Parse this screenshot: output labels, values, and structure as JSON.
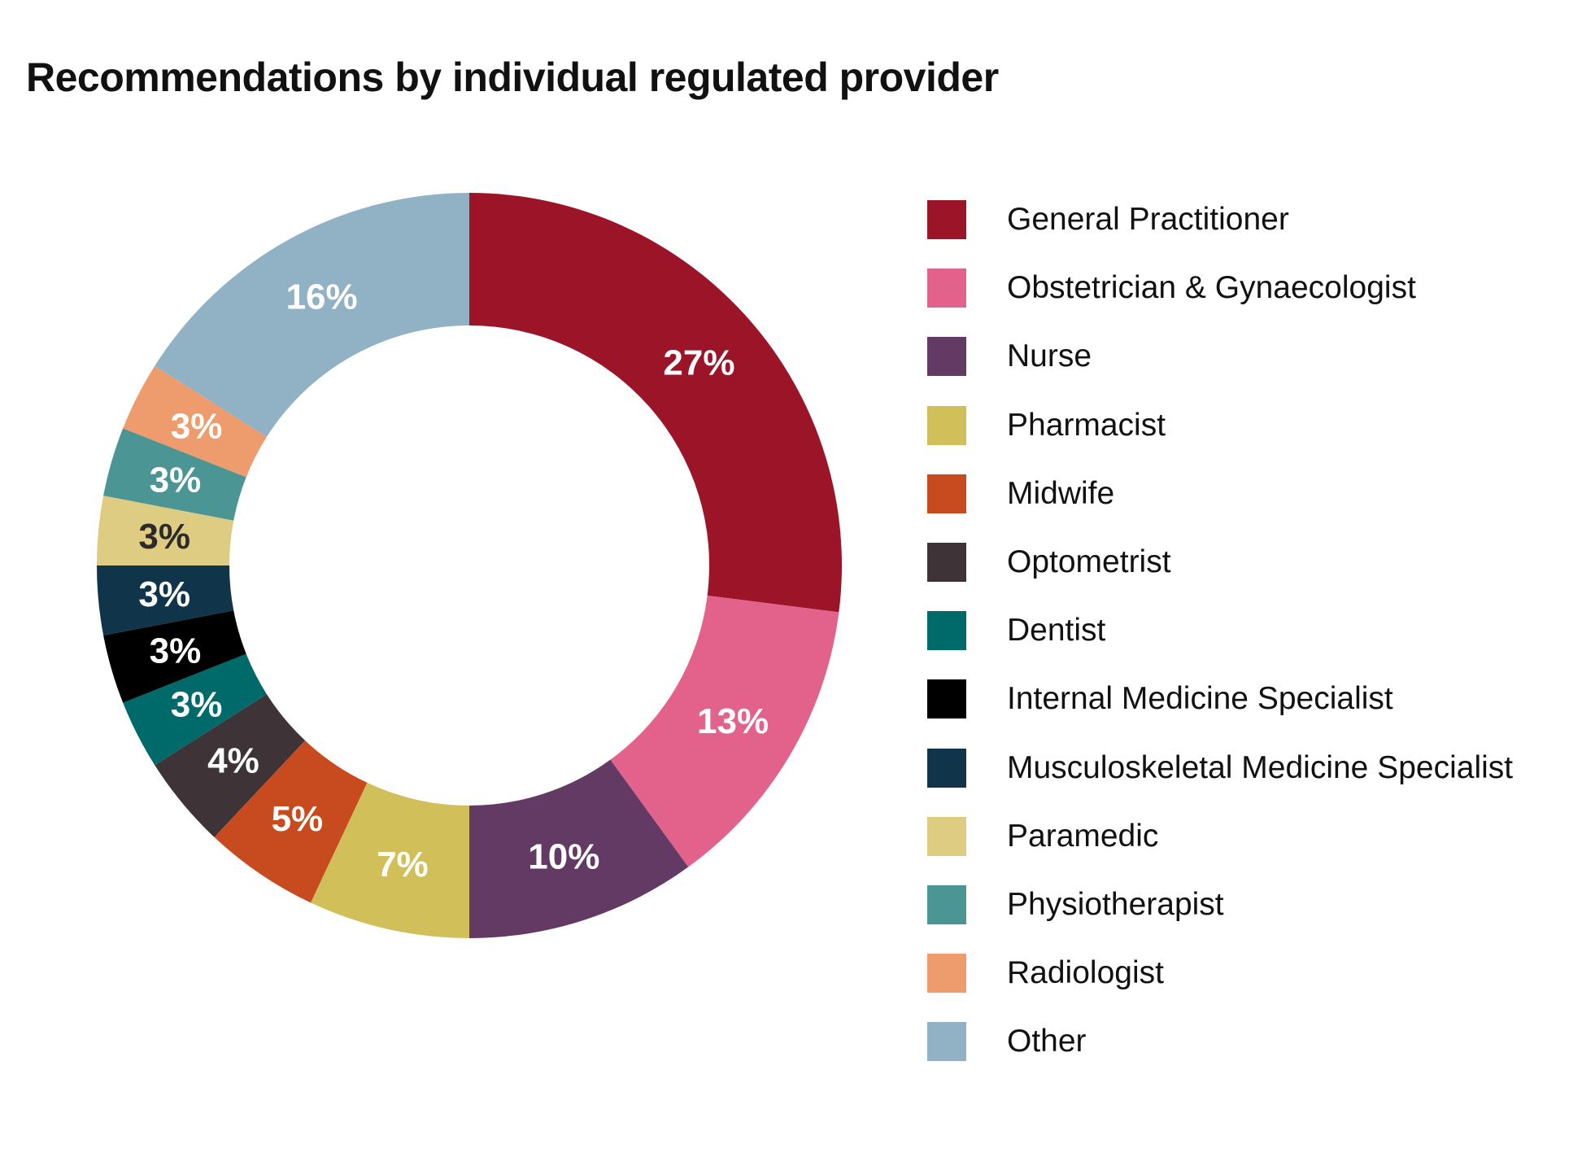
{
  "chart_data": {
    "type": "pie",
    "title": "Recommendations by individual regulated provider",
    "hole": true,
    "legend_position": "right",
    "categories": [
      "General Practitioner",
      "Obstetrician & Gynaecologist",
      "Nurse",
      "Pharmacist",
      "Midwife",
      "Optometrist",
      "Dentist",
      "Internal Medicine Specialist",
      "Musculoskeletal Medicine Specialist",
      "Paramedic",
      "Physiotherapist",
      "Radiologist",
      "Other"
    ],
    "values": [
      27,
      13,
      10,
      7,
      5,
      4,
      3,
      3,
      3,
      3,
      3,
      3,
      16
    ],
    "data_labels": [
      "27%",
      "13%",
      "10%",
      "7%",
      "5%",
      "4%",
      "3%",
      "3%",
      "3%",
      "3%",
      "3%",
      "3%",
      "16%"
    ],
    "colors": [
      "#9b1428",
      "#e2628b",
      "#633a63",
      "#d1bf59",
      "#c84b20",
      "#3e3438",
      "#006a6a",
      "#000000",
      "#10354b",
      "#ddcc82",
      "#4b9595",
      "#ee9b6d",
      "#91b2c4"
    ],
    "label_colors": [
      "#ffffff",
      "#ffffff",
      "#ffffff",
      "#ffffff",
      "#ffffff",
      "#ffffff",
      "#ffffff",
      "#ffffff",
      "#ffffff",
      "#2e2a2a",
      "#ffffff",
      "#ffffff",
      "#ffffff"
    ]
  }
}
